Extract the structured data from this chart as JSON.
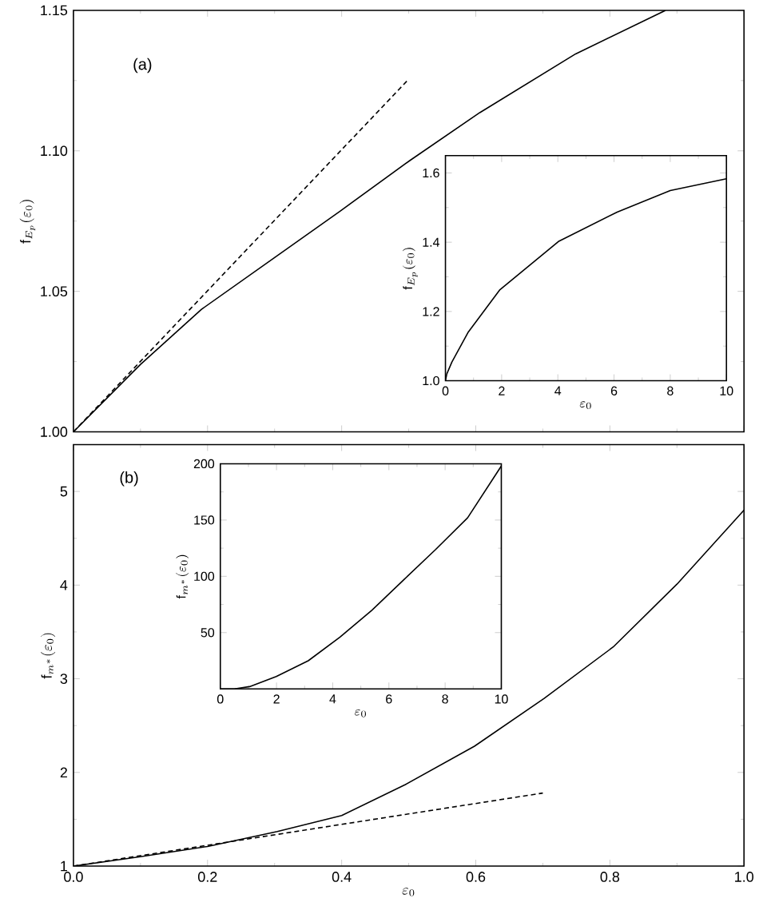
{
  "chart_data": [
    {
      "type": "line",
      "ylabel": "\\mathrm{f}_{E_{p}}(\\varepsilon_{0})",
      "annotations": [
        "(a)"
      ],
      "xlim": [
        0,
        1
      ],
      "ylim": [
        1.0,
        1.15
      ],
      "xticks": [
        0,
        0.2,
        0.4,
        0.6,
        0.8,
        1
      ],
      "yticks": [
        {
          "value": 1.0,
          "label": "1.00"
        },
        {
          "value": 1.05,
          "label": "1.05"
        },
        {
          "value": 1.1,
          "label": "1.10"
        },
        {
          "value": 1.15,
          "label": "1.15"
        }
      ],
      "tick_labels": "y",
      "marker": "none",
      "series": [
        {
          "color": "#000000",
          "line_style": "solid",
          "x": [
            0,
            0.1,
            0.191,
            0.3,
            0.398,
            0.502,
            0.606,
            0.749,
            0.883
          ],
          "values": [
            1.0,
            1.024,
            1.0436,
            1.062,
            1.0786,
            1.0966,
            1.1136,
            1.1345,
            1.15
          ]
        },
        {
          "color": "#000000",
          "line_style": "dashed",
          "x": [
            0,
            0.498
          ],
          "values": [
            1.0,
            1.125
          ]
        }
      ]
    },
    {
      "type": "line",
      "xlabel": "\\varepsilon_{0}",
      "ylabel": "\\mathrm{f}_{E_{p}}(\\varepsilon_{0})",
      "xlim": [
        0,
        10
      ],
      "ylim": [
        1.0,
        1.65
      ],
      "xticks": [
        0,
        2,
        4,
        6,
        8,
        10
      ],
      "yticks": [
        {
          "value": 1.0,
          "label": "1.0"
        },
        {
          "value": 1.2,
          "label": "1.2"
        },
        {
          "value": 1.4,
          "label": "1.4"
        },
        {
          "value": 1.6,
          "label": "1.6"
        }
      ],
      "marker": "none",
      "series": [
        {
          "color": "#000000",
          "line_style": "solid",
          "x": [
            0,
            0.05,
            0.23,
            0.8,
            1.94,
            4.02,
            6.11,
            8.0,
            10
          ],
          "values": [
            1.0,
            1.02,
            1.054,
            1.139,
            1.263,
            1.402,
            1.487,
            1.549,
            1.583
          ]
        }
      ]
    },
    {
      "type": "line",
      "xlabel": "\\varepsilon_{0}",
      "ylabel": "\\mathrm{f}_{m^{*}}(\\varepsilon_{0})",
      "annotations": [
        "(b)"
      ],
      "xlim": [
        0,
        1
      ],
      "ylim": [
        1,
        5.5
      ],
      "xticks": [
        {
          "value": 0,
          "label": "0.0"
        },
        {
          "value": 0.2,
          "label": "0.2"
        },
        {
          "value": 0.4,
          "label": "0.4"
        },
        {
          "value": 0.6,
          "label": "0.6"
        },
        {
          "value": 0.8,
          "label": "0.8"
        },
        {
          "value": 1,
          "label": "1.0"
        }
      ],
      "yticks": [
        1,
        2,
        3,
        4,
        5
      ],
      "marker": "none",
      "series": [
        {
          "color": "#000000",
          "line_style": "solid",
          "x": [
            0,
            0.1,
            0.2,
            0.304,
            0.4,
            0.495,
            0.598,
            0.702,
            0.805,
            0.9,
            1.0
          ],
          "values": [
            1,
            1.1,
            1.21,
            1.37,
            1.54,
            1.87,
            2.28,
            2.79,
            3.34,
            4.01,
            4.8
          ]
        },
        {
          "color": "#000000",
          "line_style": "dashed",
          "x": [
            0,
            0.7
          ],
          "values": [
            1,
            1.78
          ]
        }
      ]
    },
    {
      "type": "line",
      "xlabel": "\\varepsilon_{0}",
      "ylabel": "\\mathrm{f}_{m^{*}}(\\varepsilon_{0})",
      "xlim": [
        0,
        10
      ],
      "ylim": [
        0,
        200
      ],
      "xticks": [
        0,
        2,
        4,
        6,
        8,
        10
      ],
      "yticks": [
        50,
        100,
        150,
        200
      ],
      "marker": "none",
      "series": [
        {
          "color": "#000000",
          "line_style": "solid",
          "x": [
            0,
            0.5,
            1.04,
            1.99,
            3.13,
            4.26,
            5.4,
            6.53,
            7.67,
            8.8,
            10
          ],
          "values": [
            0,
            0,
            2,
            11,
            25,
            46,
            70,
            97,
            124,
            152,
            198
          ]
        }
      ]
    }
  ]
}
